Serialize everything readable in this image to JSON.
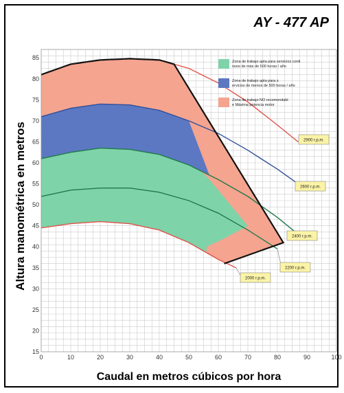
{
  "header": {
    "model": "AY - 477 AP"
  },
  "chart_data": {
    "type": "line",
    "title": "AY - 477 AP",
    "xlabel": "Caudal en metros cúbicos por hora",
    "ylabel": "Altura manométrica en metros",
    "xlim": [
      0,
      100
    ],
    "ylim": [
      15,
      87
    ],
    "x_ticks": [
      0,
      10,
      20,
      30,
      40,
      50,
      60,
      70,
      80,
      90,
      100
    ],
    "y_ticks": [
      15,
      20,
      25,
      30,
      35,
      40,
      45,
      50,
      55,
      60,
      65,
      70,
      75,
      80,
      85
    ],
    "grid": true,
    "legend_position": "top-right",
    "colors": {
      "green": "#7fd3a9",
      "blue": "#5c78c2",
      "red": "#f4a48f",
      "boundary": "#111111"
    },
    "series": [
      {
        "name": "2900 r.p.m.",
        "color": "#e0524a",
        "x": [
          0,
          10,
          20,
          30,
          40,
          50,
          60,
          70,
          80,
          87
        ],
        "y": [
          81,
          83.5,
          84.5,
          84.8,
          84.5,
          82.5,
          79,
          74.5,
          69,
          65
        ]
      },
      {
        "name": "2600 r.p.m.",
        "color": "#2f4f9a",
        "x": [
          0,
          10,
          20,
          30,
          40,
          50,
          60,
          70,
          80,
          87
        ],
        "y": [
          71,
          73,
          74,
          73.8,
          72.5,
          70,
          67,
          63,
          58.5,
          55
        ]
      },
      {
        "name": "2400 r.p.m.",
        "color": "#1f7a4a",
        "x": [
          0,
          10,
          20,
          30,
          40,
          50,
          60,
          70,
          80,
          87
        ],
        "y": [
          61,
          62.5,
          63.5,
          63.2,
          62,
          59.5,
          56,
          52,
          47,
          43
        ]
      },
      {
        "name": "2200 r.p.m.",
        "color": "#1f7a4a",
        "x": [
          0,
          10,
          20,
          30,
          40,
          50,
          60,
          70,
          80
        ],
        "y": [
          52,
          53.5,
          54,
          54,
          53,
          51,
          48,
          44,
          39.5
        ]
      },
      {
        "name": "2000 r.p.m.",
        "color": "#e0524a",
        "x": [
          0,
          10,
          20,
          30,
          40,
          50,
          60,
          66
        ],
        "y": [
          44.5,
          45.5,
          46,
          45.5,
          44,
          41,
          37,
          35
        ]
      }
    ],
    "zones": [
      {
        "name": "Zona de trabajo apta para servicios continuos de más de 500 horas / año",
        "color": "#7fd3a9"
      },
      {
        "name": "Zona de trabajo apta para servicios de menos de 500 horas / año",
        "color": "#5c78c2"
      },
      {
        "name": "Zona de trabajo NO recomendable Máxima potencia motor",
        "color": "#f4a48f"
      }
    ],
    "rpm_labels": [
      "2900 r.p.m.",
      "2600 r.p.m.",
      "2400 r.p.m.",
      "2200 r.p.m.",
      "2000 r.p.m."
    ]
  }
}
